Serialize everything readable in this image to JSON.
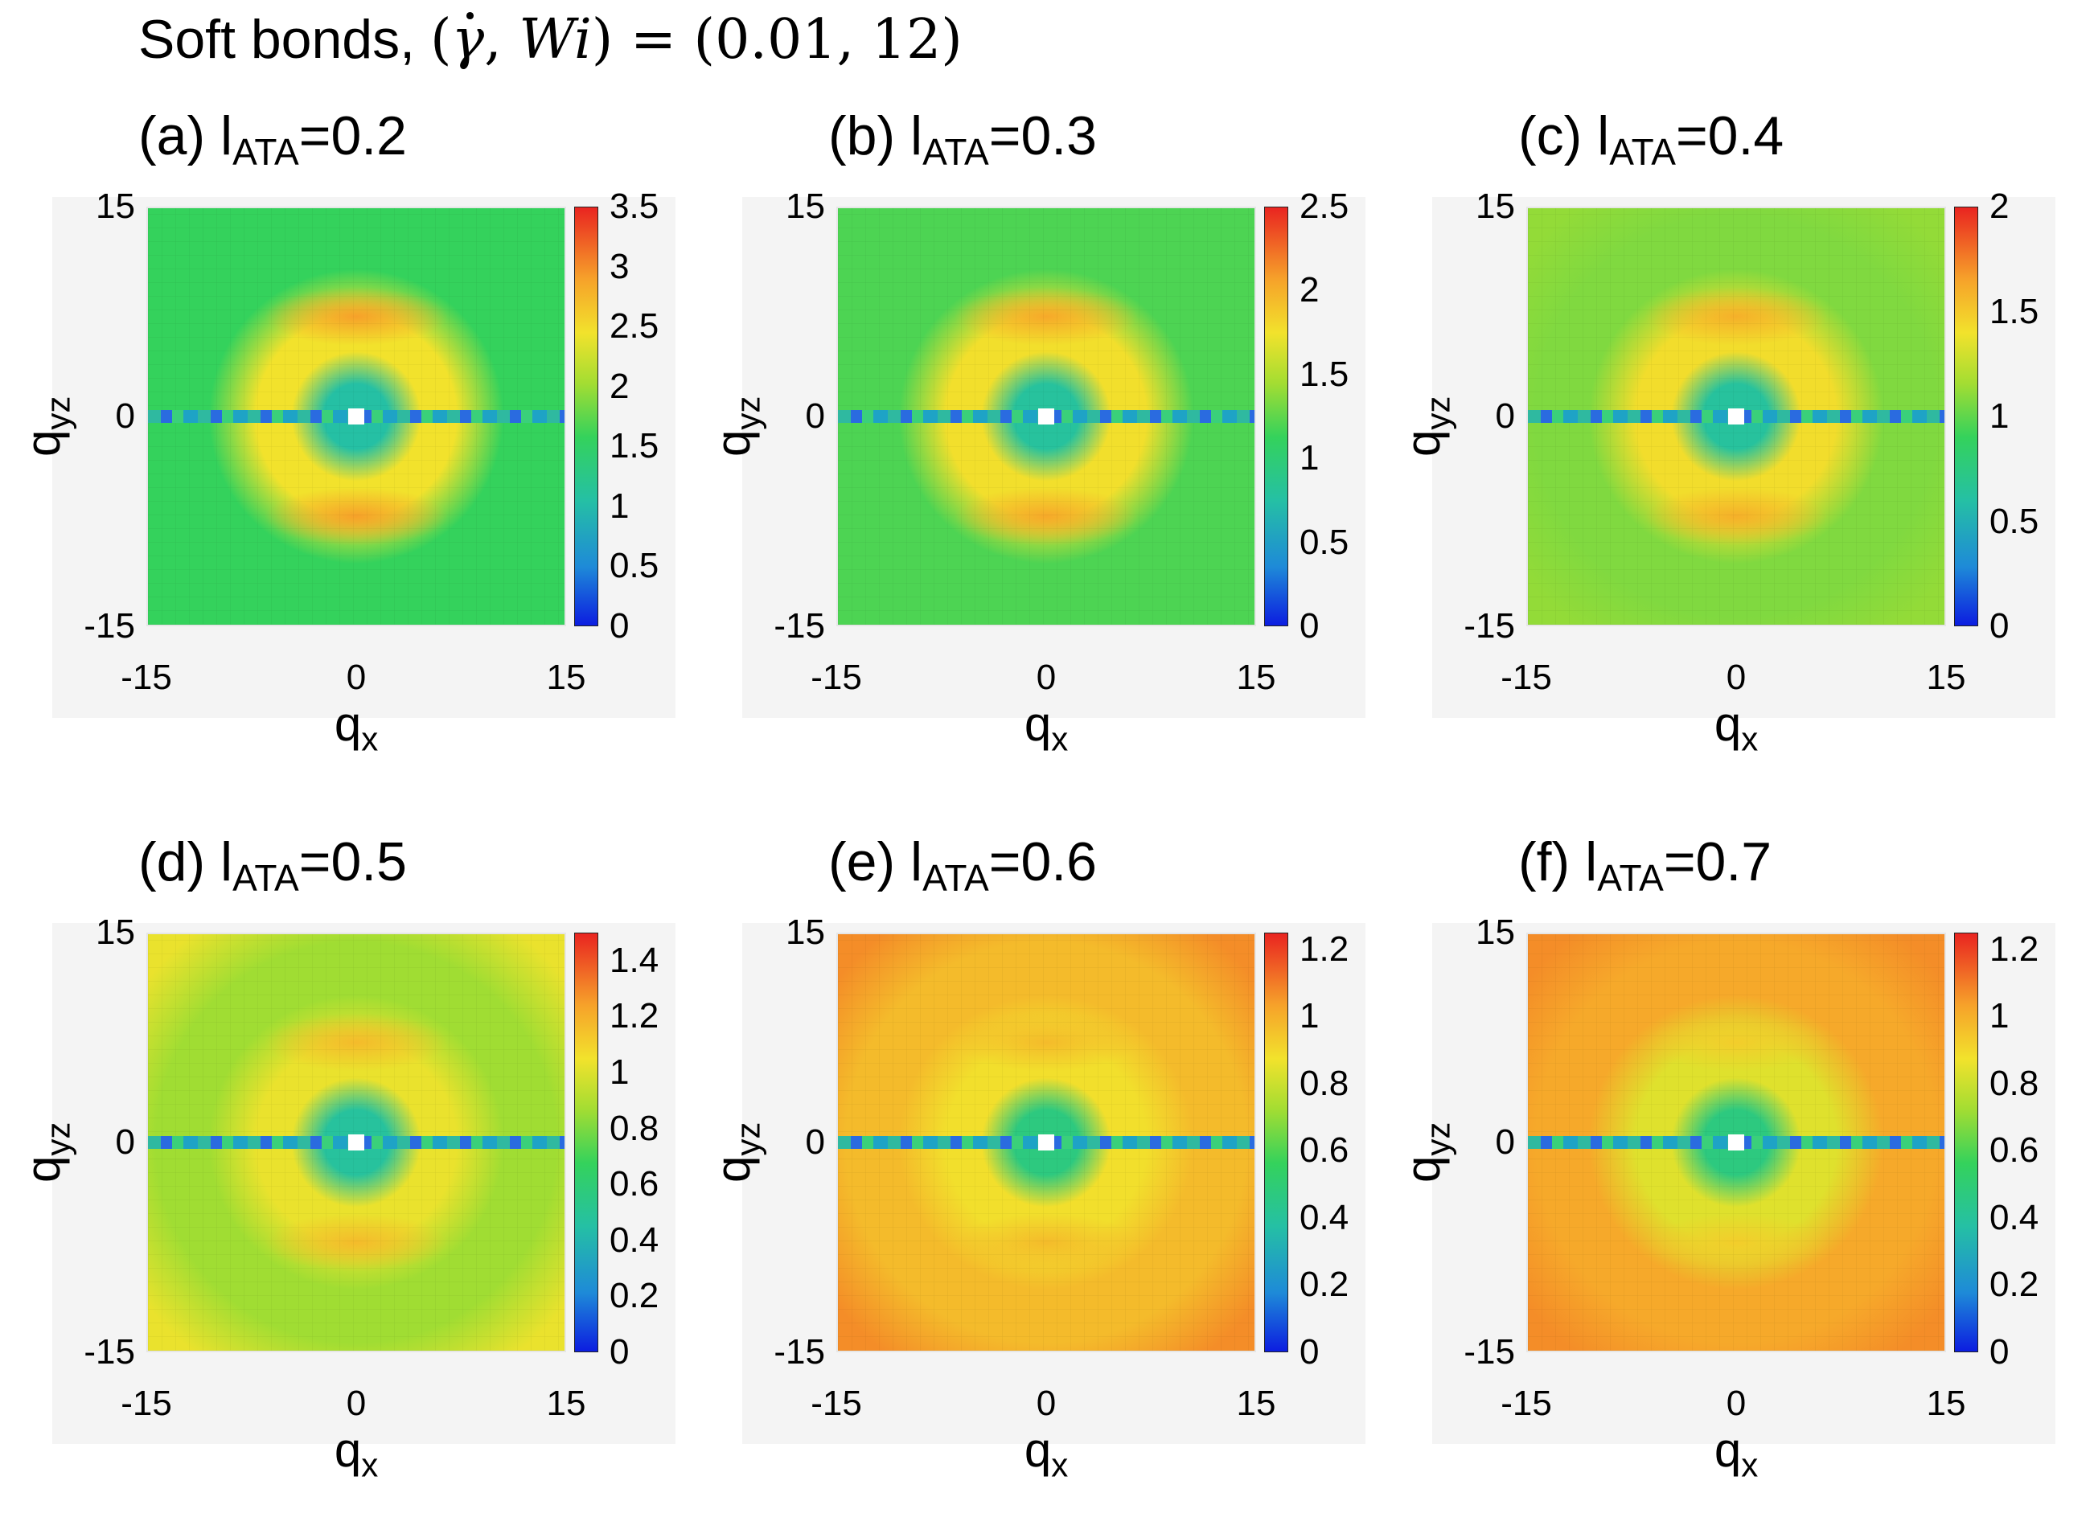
{
  "figure": {
    "title_text": "Soft bonds,",
    "title_math": {
      "open": "(",
      "gamma": "γ",
      "comma": ", ",
      "wi": "Wi",
      "close": ")",
      "eq": " = ",
      "values": "(0.01, 12)"
    }
  },
  "colors": {
    "colormap": [
      "#0c1de0",
      "#1e8ad8",
      "#25c0a4",
      "#34d25c",
      "#a4dd32",
      "#f2e22c",
      "#f6a12a",
      "#e92420"
    ]
  },
  "chart_data": [
    {
      "type": "heatmap",
      "panel": "(a)",
      "label_prefix": "(a) l",
      "label_sub": "ATA",
      "label_value": "=0.2",
      "xlabel": "q",
      "xlabel_sub": "x",
      "ylabel": "q",
      "ylabel_sub": "yz",
      "xlim": [
        -15,
        15
      ],
      "ylim": [
        -15,
        15
      ],
      "xticks": [
        "-15",
        "0",
        "15"
      ],
      "yticks": [
        "15",
        "0",
        "-15"
      ],
      "colorbar_range": [
        0,
        3.5
      ],
      "colorbar_ticks": [
        "3.5",
        "3",
        "2.5",
        "2",
        "1.5",
        "1",
        "0.5",
        "0"
      ],
      "levels": {
        "background": 1.5,
        "ring": 2.5,
        "lobe": 3.0,
        "center": 1.0,
        "corner": 1.5
      }
    },
    {
      "type": "heatmap",
      "panel": "(b)",
      "label_prefix": "(b) l",
      "label_sub": "ATA",
      "label_value": "=0.3",
      "xlabel": "q",
      "xlabel_sub": "x",
      "ylabel": "q",
      "ylabel_sub": "yz",
      "xlim": [
        -15,
        15
      ],
      "ylim": [
        -15,
        15
      ],
      "xticks": [
        "-15",
        "0",
        "15"
      ],
      "yticks": [
        "15",
        "0",
        "-15"
      ],
      "colorbar_range": [
        0,
        2.5
      ],
      "colorbar_ticks": [
        "2.5",
        "2",
        "1.5",
        "1",
        "0.5",
        "0"
      ],
      "levels": {
        "background": 1.15,
        "ring": 1.8,
        "lobe": 2.1,
        "center": 0.75,
        "corner": 1.15
      }
    },
    {
      "type": "heatmap",
      "panel": "(c)",
      "label_prefix": "(c) l",
      "label_sub": "ATA",
      "label_value": "=0.4",
      "xlabel": "q",
      "xlabel_sub": "x",
      "ylabel": "q",
      "ylabel_sub": "yz",
      "xlim": [
        -15,
        15
      ],
      "ylim": [
        -15,
        15
      ],
      "xticks": [
        "-15",
        "0",
        "15"
      ],
      "yticks": [
        "15",
        "0",
        "-15"
      ],
      "colorbar_range": [
        0,
        2
      ],
      "colorbar_ticks": [
        "2",
        "1.5",
        "1",
        "0.5",
        "0"
      ],
      "levels": {
        "background": 1.05,
        "ring": 1.45,
        "lobe": 1.65,
        "center": 0.6,
        "corner": 1.1
      }
    },
    {
      "type": "heatmap",
      "panel": "(d)",
      "label_prefix": "(d) l",
      "label_sub": "ATA",
      "label_value": "=0.5",
      "xlabel": "q",
      "xlabel_sub": "x",
      "ylabel": "q",
      "ylabel_sub": "yz",
      "xlim": [
        -15,
        15
      ],
      "ylim": [
        -15,
        15
      ],
      "xticks": [
        "-15",
        "0",
        "15"
      ],
      "yticks": [
        "15",
        "0",
        "-15"
      ],
      "colorbar_range": [
        0,
        1.5
      ],
      "colorbar_ticks": [
        "1.4",
        "1.2",
        "1",
        "0.8",
        "0.6",
        "0.4",
        "0.2",
        "0"
      ],
      "levels": {
        "background": 0.85,
        "ring": 1.05,
        "lobe": 1.2,
        "center": 0.45,
        "corner": 1.05
      }
    },
    {
      "type": "heatmap",
      "panel": "(e)",
      "label_prefix": "(e) l",
      "label_sub": "ATA",
      "label_value": "=0.6",
      "xlabel": "q",
      "xlabel_sub": "x",
      "ylabel": "q",
      "ylabel_sub": "yz",
      "xlim": [
        -15,
        15
      ],
      "ylim": [
        -15,
        15
      ],
      "xticks": [
        "-15",
        "0",
        "15"
      ],
      "yticks": [
        "15",
        "0",
        "-15"
      ],
      "colorbar_range": [
        0,
        1.25
      ],
      "colorbar_ticks": [
        "1.2",
        "1",
        "0.8",
        "0.6",
        "0.4",
        "0.2",
        "0"
      ],
      "levels": {
        "background": 1.0,
        "ring": 0.9,
        "lobe": 1.0,
        "center": 0.45,
        "corner": 1.1
      }
    },
    {
      "type": "heatmap",
      "panel": "(f)",
      "label_prefix": "(f) l",
      "label_sub": "ATA",
      "label_value": "=0.7",
      "xlabel": "q",
      "xlabel_sub": "x",
      "ylabel": "q",
      "ylabel_sub": "yz",
      "xlim": [
        -15,
        15
      ],
      "ylim": [
        -15,
        15
      ],
      "xticks": [
        "-15",
        "0",
        "15"
      ],
      "yticks": [
        "15",
        "0",
        "-15"
      ],
      "colorbar_range": [
        0,
        1.25
      ],
      "colorbar_ticks": [
        "1.2",
        "1",
        "0.8",
        "0.6",
        "0.4",
        "0.2",
        "0"
      ],
      "levels": {
        "background": 1.05,
        "ring": 0.85,
        "lobe": 0.95,
        "center": 0.45,
        "corner": 1.1
      }
    }
  ]
}
